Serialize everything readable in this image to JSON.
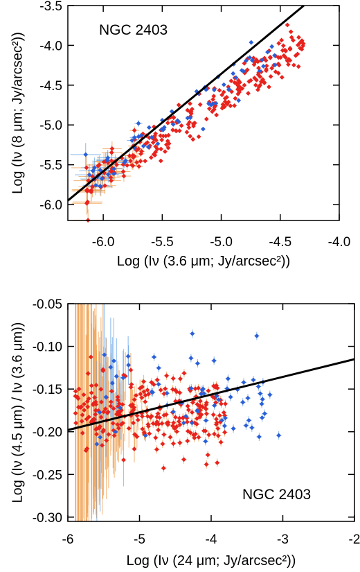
{
  "chart_data": [
    {
      "type": "scatter",
      "title": "",
      "annotation": "NGC 2403",
      "xlabel": "Log (Iν (3.6 μm; Jy/arcsec²))",
      "ylabel": "Log (Iν (8 μm; Jy/arcsec²))",
      "xlim": [
        -6.3,
        -4.0
      ],
      "ylim": [
        -6.2,
        -3.5
      ],
      "xticks": [
        "-6.0",
        "-5.5",
        "-5.0",
        "-4.5",
        "-4.0"
      ],
      "yticks": [
        "-6.0",
        "-5.5",
        "-5.0",
        "-4.5",
        "-4.0",
        "-3.5"
      ],
      "grid": false,
      "fit_line": {
        "x": [
          -6.3,
          -4.3
        ],
        "y": [
          -5.95,
          -3.5
        ]
      },
      "series": [
        {
          "color": "#e8231e",
          "error_color": "#f0a050",
          "relation": {
            "slope": 1.0,
            "intercept": 0.35,
            "x_range": [
              -6.15,
              -4.3
            ],
            "scatter": 0.12
          }
        },
        {
          "color": "#2a5fd8",
          "error_color": "#6aa6e8",
          "relation": {
            "slope": 1.0,
            "intercept": 0.45,
            "x_range": [
              -6.15,
              -4.5
            ],
            "scatter": 0.12
          }
        }
      ]
    },
    {
      "type": "scatter",
      "title": "",
      "annotation": "NGC 2403",
      "xlabel": "Log (Iν (24 μm; Jy/arcsec²))",
      "ylabel": "Log (Iν (4.5 μm) / Iν (3.6 μm))",
      "xlim": [
        -6,
        -2
      ],
      "ylim": [
        -0.305,
        -0.05
      ],
      "xticks": [
        "-6",
        "-5",
        "-4",
        "-3",
        "-2"
      ],
      "yticks": [
        "-0.30",
        "-0.25",
        "-0.20",
        "-0.15",
        "-0.10",
        "-0.05"
      ],
      "grid": false,
      "fit_line": {
        "x": [
          -6,
          -2
        ],
        "y": [
          -0.198,
          -0.115
        ]
      },
      "series": [
        {
          "color": "#e8231e",
          "error_color": "#f0a050",
          "relation": {
            "mean": -0.18,
            "x_range": [
              -5.9,
              -3.8
            ],
            "scatter": 0.022
          }
        },
        {
          "color": "#2a5fd8",
          "error_color": "#6aa6e8",
          "relation": {
            "mean": -0.16,
            "x_range": [
              -5.6,
              -3.0
            ],
            "scatter": 0.03
          }
        }
      ]
    }
  ]
}
